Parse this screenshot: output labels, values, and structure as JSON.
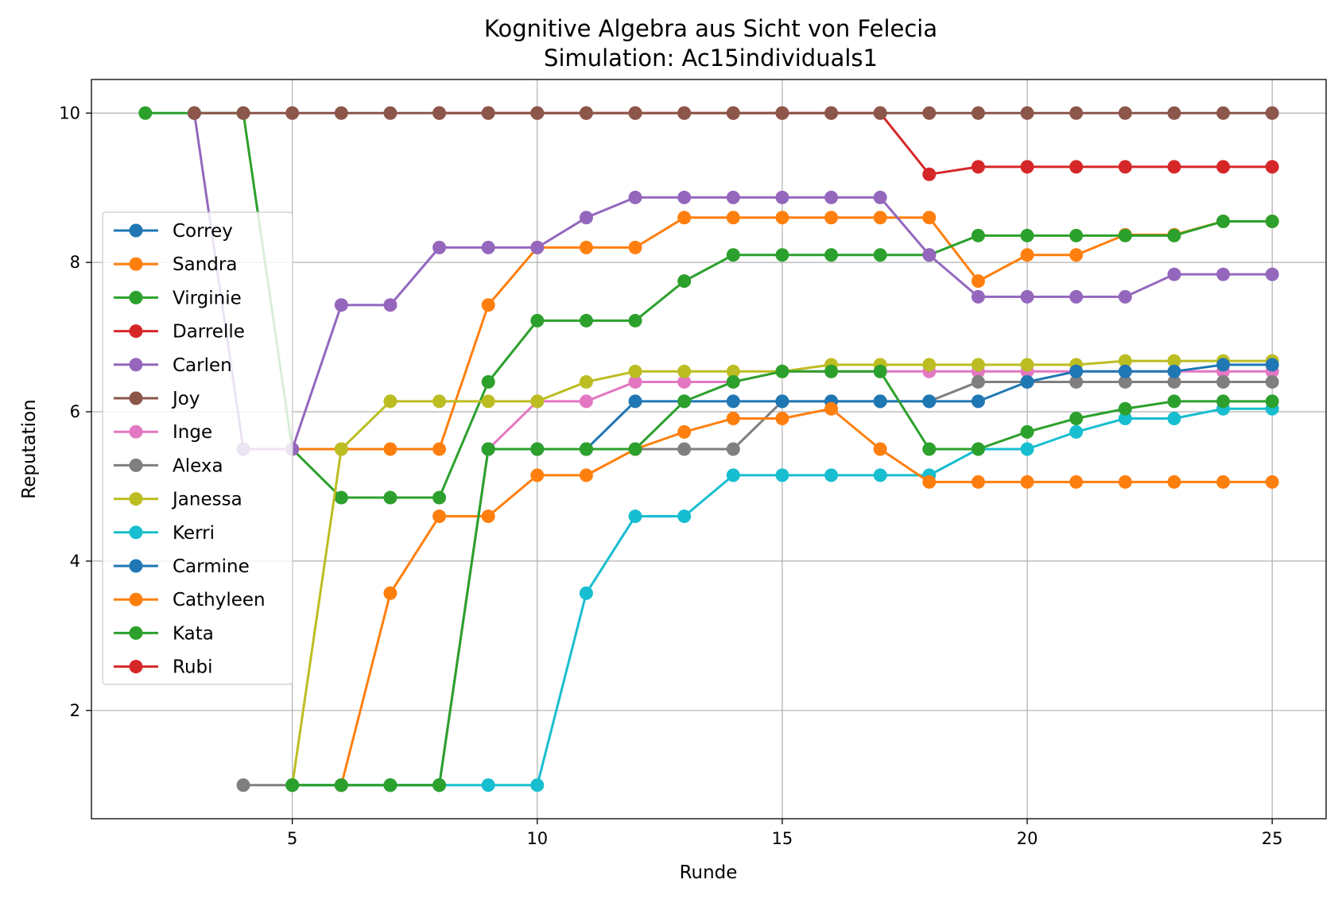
{
  "chart_data": {
    "type": "line",
    "title": "Kognitive Algebra aus Sicht von Felecia",
    "subtitle": "Simulation: Ac15individuals1",
    "xlabel": "Runde",
    "ylabel": "Reputation",
    "xlim": [
      0.9,
      26.1
    ],
    "ylim": [
      0.55,
      10.45
    ],
    "xticks": [
      5,
      10,
      15,
      20,
      25
    ],
    "yticks": [
      2,
      4,
      6,
      8,
      10
    ],
    "grid": true,
    "legend_position": "center-left",
    "series": [
      {
        "name": "Correy",
        "color": "#1f77b4",
        "x": [],
        "y": []
      },
      {
        "name": "Sandra",
        "color": "#ff7f0e",
        "x": [
          4,
          5,
          6,
          7,
          8,
          9,
          10,
          11,
          12,
          13,
          14,
          15,
          16,
          17,
          18,
          19,
          20,
          21,
          22,
          23,
          24,
          25
        ],
        "y": [
          5.5,
          5.5,
          5.5,
          5.5,
          5.5,
          7.43,
          8.2,
          8.2,
          8.2,
          8.6,
          8.6,
          8.6,
          8.6,
          8.6,
          8.6,
          7.75,
          8.1,
          8.1,
          8.37,
          8.37,
          8.55,
          8.55
        ]
      },
      {
        "name": "Virginie",
        "color": "#2ca02c",
        "x": [
          2,
          3,
          4,
          5,
          6,
          7,
          8,
          9,
          10,
          11,
          12,
          13,
          14,
          15,
          16,
          17,
          18,
          19,
          20,
          21,
          22,
          23,
          24,
          25
        ],
        "y": [
          10,
          10,
          10,
          5.5,
          4.85,
          4.85,
          4.85,
          6.4,
          7.22,
          7.22,
          7.22,
          7.75,
          8.1,
          8.1,
          8.1,
          8.1,
          8.1,
          8.36,
          8.36,
          8.36,
          8.36,
          8.36,
          8.55,
          8.55
        ]
      },
      {
        "name": "Darrelle",
        "color": "#d62728",
        "x": [
          8,
          9,
          10,
          11,
          12,
          13,
          14,
          15,
          16,
          17,
          18,
          19,
          20,
          21,
          22,
          23,
          24,
          25
        ],
        "y": [
          10,
          10,
          10,
          10,
          10,
          10,
          10,
          10,
          10,
          10,
          9.18,
          9.28,
          9.28,
          9.28,
          9.28,
          9.28,
          9.28,
          9.28
        ]
      },
      {
        "name": "Carlen",
        "color": "#9467bd",
        "x": [
          3,
          4,
          5,
          6,
          7,
          8,
          9,
          10,
          11,
          12,
          13,
          14,
          15,
          16,
          17,
          18,
          19,
          20,
          21,
          22,
          23,
          24,
          25
        ],
        "y": [
          10,
          5.5,
          5.5,
          7.43,
          7.43,
          8.2,
          8.2,
          8.2,
          8.6,
          8.87,
          8.87,
          8.87,
          8.87,
          8.87,
          8.87,
          8.1,
          7.54,
          7.54,
          7.54,
          7.54,
          7.84,
          7.84,
          7.84
        ]
      },
      {
        "name": "Joy",
        "color": "#8c564b",
        "x": [
          3,
          4,
          5,
          6,
          7,
          8,
          9,
          10,
          11,
          12,
          13,
          14,
          15,
          16,
          17,
          18,
          19,
          20,
          21,
          22,
          23,
          24,
          25
        ],
        "y": [
          10,
          10,
          10,
          10,
          10,
          10,
          10,
          10,
          10,
          10,
          10,
          10,
          10,
          10,
          10,
          10,
          10,
          10,
          10,
          10,
          10,
          10,
          10
        ]
      },
      {
        "name": "Inge",
        "color": "#e377c2",
        "x": [
          9,
          10,
          11,
          12,
          13,
          14,
          15,
          16,
          17,
          18,
          19,
          20,
          21,
          22,
          23,
          24,
          25
        ],
        "y": [
          5.5,
          6.14,
          6.14,
          6.4,
          6.4,
          6.4,
          6.54,
          6.54,
          6.54,
          6.54,
          6.54,
          6.54,
          6.54,
          6.54,
          6.54,
          6.54,
          6.54
        ]
      },
      {
        "name": "Alexa",
        "color": "#7f7f7f",
        "x": [
          4,
          5,
          6,
          7,
          8,
          9,
          10,
          11,
          12,
          13,
          14,
          15,
          16,
          17,
          18,
          19,
          20,
          21,
          22,
          23,
          24,
          25
        ],
        "y": [
          1,
          1,
          1,
          1,
          1,
          5.5,
          5.5,
          5.5,
          5.5,
          5.5,
          5.5,
          6.14,
          6.14,
          6.14,
          6.14,
          6.4,
          6.4,
          6.4,
          6.4,
          6.4,
          6.4,
          6.4
        ]
      },
      {
        "name": "Janessa",
        "color": "#bcbd22",
        "x": [
          5,
          6,
          7,
          8,
          9,
          10,
          11,
          12,
          13,
          14,
          15,
          16,
          17,
          18,
          19,
          20,
          21,
          22,
          23,
          24,
          25
        ],
        "y": [
          1,
          5.5,
          6.14,
          6.14,
          6.14,
          6.14,
          6.4,
          6.54,
          6.54,
          6.54,
          6.54,
          6.63,
          6.63,
          6.63,
          6.63,
          6.63,
          6.63,
          6.68,
          6.68,
          6.68,
          6.68
        ]
      },
      {
        "name": "Kerri",
        "color": "#17becf",
        "x": [
          5,
          6,
          7,
          8,
          9,
          10,
          11,
          12,
          13,
          14,
          15,
          16,
          17,
          18,
          19,
          20,
          21,
          22,
          23,
          24,
          25
        ],
        "y": [
          1,
          1,
          1,
          1,
          1,
          1,
          3.57,
          4.6,
          4.6,
          5.15,
          5.15,
          5.15,
          5.15,
          5.15,
          5.5,
          5.5,
          5.73,
          5.91,
          5.91,
          6.04,
          6.04
        ]
      },
      {
        "name": "Carmine",
        "color": "#1f77b4",
        "x": [
          9,
          10,
          11,
          12,
          13,
          14,
          15,
          16,
          17,
          18,
          19,
          20,
          21,
          22,
          23,
          24,
          25
        ],
        "y": [
          5.5,
          5.5,
          5.5,
          6.14,
          6.14,
          6.14,
          6.14,
          6.14,
          6.14,
          6.14,
          6.14,
          6.4,
          6.54,
          6.54,
          6.54,
          6.63,
          6.63
        ]
      },
      {
        "name": "Cathyleen",
        "color": "#ff7f0e",
        "x": [
          6,
          7,
          8,
          9,
          10,
          11,
          12,
          13,
          14,
          15,
          16,
          17,
          18,
          19,
          20,
          21,
          22,
          23,
          24,
          25
        ],
        "y": [
          1,
          3.57,
          4.6,
          4.6,
          5.15,
          5.15,
          5.5,
          5.73,
          5.91,
          5.91,
          6.04,
          5.5,
          5.06,
          5.06,
          5.06,
          5.06,
          5.06,
          5.06,
          5.06,
          5.06
        ]
      },
      {
        "name": "Kata",
        "color": "#2ca02c",
        "x": [
          5,
          6,
          7,
          8,
          9,
          10,
          11,
          12,
          13,
          14,
          15,
          16,
          17,
          18,
          19,
          20,
          21,
          22,
          23,
          24,
          25
        ],
        "y": [
          1,
          1,
          1,
          1,
          5.5,
          5.5,
          5.5,
          5.5,
          6.14,
          6.4,
          6.54,
          6.54,
          6.54,
          5.5,
          5.5,
          5.73,
          5.91,
          6.04,
          6.14,
          6.14,
          6.14
        ]
      },
      {
        "name": "Rubi",
        "color": "#d62728",
        "x": [],
        "y": []
      }
    ]
  }
}
